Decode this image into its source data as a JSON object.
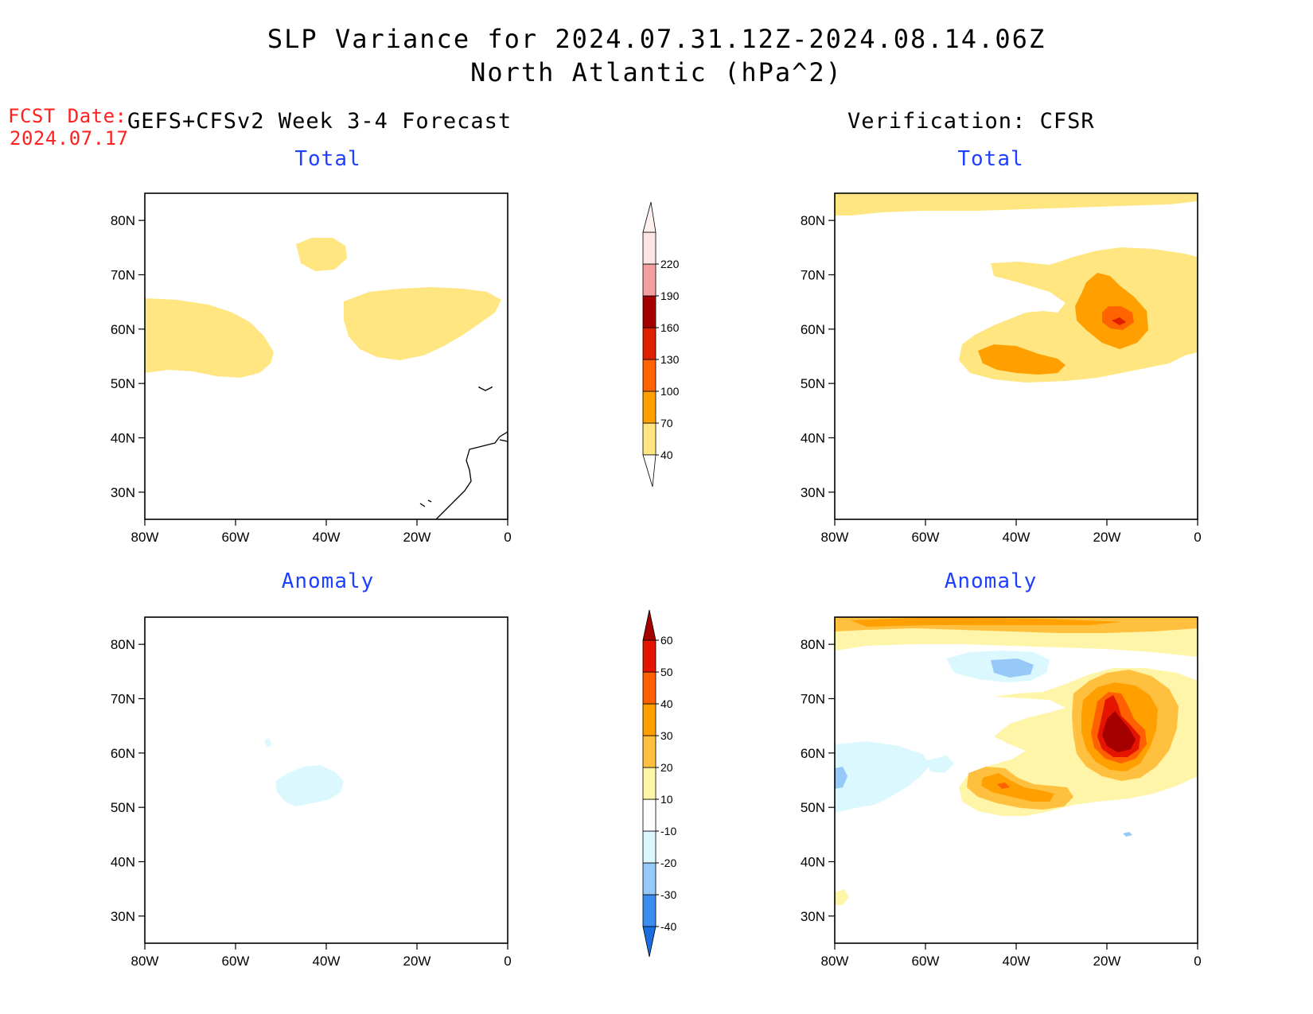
{
  "title": {
    "line1": "SLP Variance for 2024.07.31.12Z-2024.08.14.06Z",
    "line2": "North Atlantic (hPa^2)"
  },
  "forecast_label": {
    "line1": "FCST Date:",
    "line2": "2024.07.17"
  },
  "left_header": "GEFS+CFSv2 Week 3-4 Forecast",
  "right_header": "Verification: CFSR",
  "panel_titles": {
    "top_left": "Total",
    "top_right": "Total",
    "bottom_left": "Anomaly",
    "bottom_right": "Anomaly"
  },
  "axes": {
    "lat_ticks": [
      "80N",
      "70N",
      "60N",
      "50N",
      "40N",
      "30N"
    ],
    "lon_ticks": [
      "80W",
      "60W",
      "40W",
      "20W",
      "0"
    ],
    "lon_range_deg": [
      -80,
      0
    ],
    "lat_range_deg": [
      25,
      85
    ]
  },
  "colorbars": {
    "total": {
      "labels": [
        "40",
        "70",
        "100",
        "130",
        "160",
        "190",
        "220"
      ],
      "colors": [
        "#ffe680",
        "#ffa000",
        "#ff6400",
        "#e01e00",
        "#a50000",
        "#f4a0a0",
        "#fde4e4"
      ]
    },
    "anomaly": {
      "labels": [
        "-40",
        "-30",
        "-20",
        "-10",
        "10",
        "20",
        "30",
        "40",
        "50",
        "60"
      ],
      "colors": [
        "#1a6fe0",
        "#3c8cf0",
        "#96c8f8",
        "#dcf8ff",
        "#ffffff",
        "#fff5a8",
        "#ffc040",
        "#ffa000",
        "#ff6000",
        "#e41400",
        "#a50000"
      ]
    }
  },
  "chart_data": {
    "type": "heatmap",
    "variable": "SLP Variance",
    "units": "hPa^2",
    "panels": [
      {
        "panel": "GEFS+CFSv2 Week 3-4 Forecast / Total",
        "features": [
          {
            "range": "40-70",
            "region": "near 43W, 75N"
          },
          {
            "range": "40-70",
            "region": "Labrador Sea, 50-63N, 80-50W"
          },
          {
            "range": "40-70",
            "region": "south of Iceland, 52-65N, 35-5W"
          }
        ]
      },
      {
        "panel": "Verification: CFSR / Total",
        "features": [
          {
            "range": "40-70",
            "region": "far north strip, 82-85N"
          },
          {
            "range": "40-70",
            "region": "central/east North Atlantic, 47-72N, 50-0W"
          },
          {
            "range": "70-100",
            "region": "52-56N, 45-25W"
          },
          {
            "range": "70-100",
            "region": "55-68N, 20-5W"
          },
          {
            "range": "100-130",
            "region": "near 14W, 60N"
          }
        ]
      },
      {
        "panel": "GEFS+CFSv2 Week 3-4 Forecast / Anomaly",
        "features": [
          {
            "range": "-10 to -20",
            "region": "near 43W, 53N"
          }
        ]
      },
      {
        "panel": "Verification: CFSR / Anomaly",
        "features": [
          {
            "range": "10-20",
            "region": "northern strip 80-85N"
          },
          {
            "range": "20-30",
            "region": "northern strip 83-85N"
          },
          {
            "range": "-20 to -30",
            "region": "near 42W, 77N"
          },
          {
            "range": "-10 to -20",
            "region": "Labrador Sea, 45-57N, 80-55W"
          },
          {
            "range": "10-20",
            "region": "central North Atlantic, 48-72N, 45-0W"
          },
          {
            "range": "20-30",
            "region": "52-56N, 45-25W"
          },
          {
            "range": "30-40",
            "region": "55-72N, 22-5W"
          },
          {
            "range": "50-60",
            "region": "58-62N, 18-8W"
          }
        ]
      }
    ]
  }
}
